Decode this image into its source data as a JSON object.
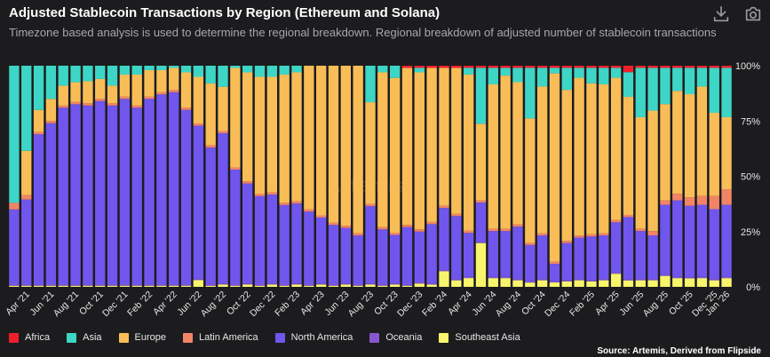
{
  "header": {
    "title": "Adjusted Stablecoin Transactions by Region (Ethereum and Solana)",
    "subtitle": "Timezone based analysis is used to determine the regional breakdown. Regional breakdown of adjusted number of stablecoin transactions"
  },
  "toolbar": {
    "download_icon": "download-icon",
    "camera_icon": "camera-icon"
  },
  "watermark": "Artemis",
  "source": "Source: Artemis, Derived from Flipside",
  "legend": [
    {
      "name": "Africa",
      "color": "#f0202b"
    },
    {
      "name": "Asia",
      "color": "#3dd6c6"
    },
    {
      "name": "Europe",
      "color": "#f9bd57"
    },
    {
      "name": "Latin America",
      "color": "#f28466"
    },
    {
      "name": "North America",
      "color": "#7056ec"
    },
    {
      "name": "Oceania",
      "color": "#8658cf"
    },
    {
      "name": "Southeast Asia",
      "color": "#f8f56d"
    }
  ],
  "chart_data": {
    "type": "bar",
    "stacked": true,
    "title": "Adjusted Stablecoin Transactions by Region (Ethereum and Solana)",
    "ylim": [
      0,
      100
    ],
    "y_unit": "%",
    "y_ticks": [
      "0%",
      "25%",
      "50%",
      "75%",
      "100%"
    ],
    "x_ticks": [
      "Apr '21",
      "Jun '21",
      "Aug '21",
      "Oct '21",
      "Dec '21",
      "Feb '22",
      "Apr '22",
      "Jun '22",
      "Aug '22",
      "Oct '22",
      "Dec '22",
      "Feb '23",
      "Apr '23",
      "Jun '23",
      "Aug '23",
      "Oct '23",
      "Dec '23",
      "Feb '24",
      "Apr '24",
      "Jun '24",
      "Aug '24",
      "Oct '24",
      "Dec '24",
      "Feb '25",
      "Apr '25",
      "Jun '25",
      "Aug '25",
      "Oct '25",
      "Dec '25",
      "Jan '26"
    ],
    "x_tick_start": 1,
    "x_tick_step": 2,
    "categories": [
      "Mar '21",
      "Apr '21",
      "May '21",
      "Jun '21",
      "Jul '21",
      "Aug '21",
      "Sep '21",
      "Oct '21",
      "Nov '21",
      "Dec '21",
      "Jan '22",
      "Feb '22",
      "Mar '22",
      "Apr '22",
      "May '22",
      "Jun '22",
      "Jul '22",
      "Aug '22",
      "Sep '22",
      "Oct '22",
      "Nov '22",
      "Dec '22",
      "Jan '23",
      "Feb '23",
      "Mar '23",
      "Apr '23",
      "May '23",
      "Jun '23",
      "Jul '23",
      "Aug '23",
      "Sep '23",
      "Oct '23",
      "Nov '23",
      "Dec '23",
      "Jan '24",
      "Feb '24",
      "Mar '24",
      "Apr '24",
      "May '24",
      "Jun '24",
      "Jul '24",
      "Aug '24",
      "Sep '24",
      "Oct '24",
      "Nov '24",
      "Dec '24",
      "Jan '25",
      "Feb '25",
      "Mar '25",
      "Apr '25",
      "May '25",
      "Jun '25",
      "Jul '25",
      "Aug '25",
      "Sep '25",
      "Oct '25",
      "Nov '25",
      "Dec '25",
      "Jan '26"
    ],
    "series": [
      {
        "name": "Southeast Asia",
        "color": "#f8f56d",
        "values": [
          0.5,
          0.5,
          0.5,
          0.5,
          0.5,
          0.5,
          0.5,
          0.5,
          0.5,
          0.5,
          0.5,
          0.5,
          0.5,
          0.5,
          0.5,
          3,
          0.5,
          1,
          0.5,
          1,
          0.5,
          1,
          0.5,
          1,
          0.5,
          1,
          0.5,
          1,
          0.5,
          1,
          0.5,
          1,
          0.5,
          1.5,
          1,
          7,
          3,
          4,
          20,
          4,
          4,
          3,
          2,
          3,
          2,
          2.5,
          3,
          2.5,
          3,
          6,
          3,
          3,
          3,
          5,
          4,
          4,
          4,
          3,
          4
        ]
      },
      {
        "name": "Oceania",
        "color": "#8658cf",
        "values": [
          0.5,
          0.5,
          0.5,
          0.5,
          0.5,
          0.5,
          0.5,
          0.5,
          0.5,
          0.5,
          0.5,
          0.5,
          0.5,
          0.5,
          0.5,
          0.5,
          0.5,
          0.5,
          0.5,
          0.5,
          0.5,
          0.5,
          0.5,
          0.5,
          0.5,
          0.5,
          0.5,
          0.5,
          0.5,
          0.5,
          0.5,
          0.5,
          0.5,
          0.5,
          0.5,
          0.5,
          0.5,
          0.5,
          0.5,
          0.5,
          0.5,
          0.5,
          0.5,
          0.5,
          0.5,
          0.5,
          0.5,
          0.5,
          0.5,
          0.5,
          0.5,
          0.5,
          0.5,
          0.5,
          0.5,
          0.5,
          0.5,
          0.5,
          0.5
        ]
      },
      {
        "name": "North America",
        "color": "#7056ec",
        "values": [
          34,
          38.5,
          68,
          73,
          80,
          82,
          81,
          83,
          81,
          84,
          80,
          84,
          86,
          87,
          79,
          69,
          62,
          68,
          52,
          45,
          40,
          40,
          36,
          36,
          33,
          30,
          27,
          25,
          22,
          35,
          25,
          22,
          26,
          23,
          27,
          28,
          29,
          20,
          18,
          21,
          21,
          24,
          17,
          20,
          8,
          17,
          19,
          20,
          20,
          23,
          29,
          22,
          20,
          32,
          35,
          34,
          33,
          32,
          33
        ]
      },
      {
        "name": "Latin America",
        "color": "#f28466",
        "values": [
          3,
          2,
          1,
          1,
          1,
          1,
          1,
          1,
          1,
          1,
          1,
          1,
          1,
          1,
          1,
          1,
          1,
          1,
          1,
          1,
          1,
          1,
          1,
          1,
          1,
          1,
          1,
          1,
          1,
          1,
          1,
          1,
          1,
          1,
          1,
          1,
          1,
          1,
          1,
          1,
          1,
          1,
          1,
          1,
          1,
          1,
          1,
          1,
          1,
          1,
          1,
          1,
          2,
          2,
          3,
          4,
          4,
          6,
          7
        ]
      },
      {
        "name": "Europe",
        "color": "#f9bd57",
        "values": [
          0,
          20,
          10,
          10,
          9,
          9,
          10,
          9,
          8,
          10,
          14,
          12,
          10,
          10,
          16,
          21,
          28,
          20,
          45,
          49,
          53,
          52,
          58,
          58,
          65,
          68,
          71,
          72,
          75,
          46,
          70,
          70,
          71,
          71,
          70,
          62,
          67,
          71,
          35,
          66,
          70,
          65,
          58,
          67,
          86,
          69,
          72,
          69,
          68,
          65,
          55,
          51,
          55,
          44,
          47,
          49,
          50,
          38,
          33
        ]
      },
      {
        "name": "Asia",
        "color": "#3dd6c6",
        "values": [
          62,
          38.5,
          20,
          15,
          9,
          7.5,
          7,
          6,
          9,
          4,
          4,
          2,
          2,
          1,
          3,
          5,
          8,
          9.5,
          1,
          3,
          5,
          5,
          4,
          3,
          0,
          0,
          0,
          0,
          0,
          16.5,
          3,
          5.5,
          0,
          2,
          0,
          0,
          0,
          3,
          25.5,
          7.5,
          3.5,
          6.5,
          23.5,
          8.5,
          2.5,
          10,
          4.5,
          7,
          7.5,
          4.5,
          11.5,
          22.5,
          19.5,
          16.5,
          10.5,
          12.5,
          8.5,
          20.5,
          22.5
        ]
      },
      {
        "name": "Africa",
        "color": "#f0202b",
        "values": [
          0,
          0,
          0,
          0,
          0,
          0,
          0,
          0,
          0,
          0,
          0,
          0,
          0,
          0,
          0,
          0,
          0,
          0,
          0,
          0,
          0,
          0,
          0,
          0,
          0,
          0,
          0,
          0,
          0,
          0,
          0,
          0,
          1,
          1,
          1,
          1,
          1,
          1,
          1,
          1,
          1,
          1,
          1,
          1,
          1,
          1,
          1,
          1,
          1,
          1,
          3,
          1,
          1,
          1,
          1,
          1,
          1,
          1,
          1
        ]
      }
    ]
  }
}
